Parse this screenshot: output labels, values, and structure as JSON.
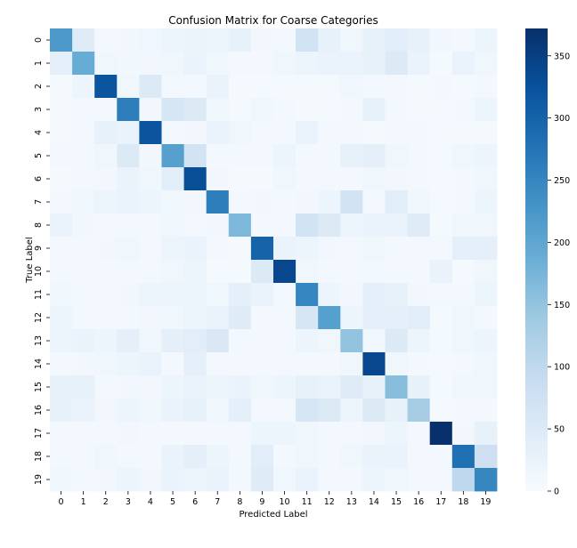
{
  "chart_data": {
    "type": "heatmap",
    "title": "Confusion Matrix for Coarse Categories",
    "xlabel": "Predicted Label",
    "ylabel": "True Label",
    "x_categories": [
      "0",
      "1",
      "2",
      "3",
      "4",
      "5",
      "6",
      "7",
      "8",
      "9",
      "10",
      "11",
      "12",
      "13",
      "14",
      "15",
      "16",
      "17",
      "18",
      "19"
    ],
    "y_categories": [
      "0",
      "1",
      "2",
      "3",
      "4",
      "5",
      "6",
      "7",
      "8",
      "9",
      "10",
      "11",
      "12",
      "13",
      "14",
      "15",
      "16",
      "17",
      "18",
      "19"
    ],
    "colormap": "Blues",
    "colorbar": {
      "min": 0,
      "max": 372,
      "ticks": [
        0,
        50,
        100,
        150,
        200,
        250,
        300,
        350
      ]
    },
    "values": [
      [
        220,
        45,
        10,
        12,
        14,
        20,
        22,
        18,
        30,
        12,
        10,
        70,
        30,
        15,
        30,
        40,
        30,
        12,
        10,
        20
      ],
      [
        35,
        190,
        15,
        12,
        12,
        15,
        25,
        15,
        10,
        10,
        15,
        20,
        25,
        25,
        30,
        50,
        25,
        5,
        25,
        15
      ],
      [
        5,
        20,
        320,
        15,
        50,
        8,
        10,
        25,
        5,
        5,
        5,
        5,
        5,
        15,
        8,
        10,
        5,
        8,
        5,
        10
      ],
      [
        5,
        8,
        10,
        260,
        12,
        60,
        50,
        15,
        5,
        15,
        10,
        5,
        5,
        10,
        30,
        10,
        5,
        5,
        10,
        20
      ],
      [
        5,
        8,
        30,
        25,
        320,
        10,
        12,
        25,
        15,
        10,
        10,
        25,
        10,
        10,
        5,
        10,
        10,
        5,
        5,
        5
      ],
      [
        8,
        10,
        15,
        50,
        12,
        210,
        70,
        8,
        8,
        10,
        18,
        10,
        10,
        30,
        35,
        15,
        10,
        5,
        15,
        20
      ],
      [
        5,
        8,
        12,
        25,
        15,
        40,
        330,
        12,
        5,
        5,
        15,
        8,
        8,
        10,
        15,
        12,
        8,
        5,
        10,
        15
      ],
      [
        8,
        15,
        20,
        25,
        20,
        15,
        12,
        260,
        10,
        12,
        10,
        12,
        20,
        70,
        10,
        40,
        15,
        5,
        10,
        20
      ],
      [
        25,
        12,
        10,
        8,
        10,
        15,
        10,
        12,
        170,
        10,
        10,
        70,
        50,
        20,
        25,
        25,
        45,
        5,
        15,
        15
      ],
      [
        8,
        10,
        12,
        15,
        10,
        18,
        25,
        10,
        5,
        300,
        25,
        20,
        12,
        10,
        15,
        10,
        10,
        10,
        35,
        35
      ],
      [
        8,
        10,
        8,
        10,
        10,
        15,
        20,
        5,
        5,
        50,
        340,
        15,
        10,
        8,
        10,
        10,
        10,
        25,
        5,
        15
      ],
      [
        15,
        10,
        10,
        12,
        18,
        20,
        20,
        15,
        35,
        25,
        10,
        250,
        20,
        12,
        35,
        30,
        12,
        10,
        10,
        20
      ],
      [
        20,
        10,
        10,
        10,
        12,
        15,
        20,
        25,
        45,
        10,
        10,
        60,
        210,
        20,
        35,
        35,
        40,
        5,
        15,
        10
      ],
      [
        20,
        25,
        20,
        35,
        15,
        35,
        40,
        55,
        10,
        10,
        10,
        20,
        15,
        150,
        15,
        50,
        20,
        5,
        15,
        20
      ],
      [
        8,
        12,
        15,
        20,
        25,
        10,
        35,
        8,
        8,
        8,
        10,
        10,
        10,
        15,
        340,
        15,
        10,
        5,
        10,
        15
      ],
      [
        30,
        30,
        10,
        12,
        12,
        20,
        25,
        20,
        25,
        15,
        20,
        30,
        25,
        45,
        30,
        160,
        30,
        5,
        15,
        15
      ],
      [
        30,
        25,
        12,
        18,
        15,
        25,
        30,
        15,
        35,
        10,
        10,
        60,
        50,
        20,
        50,
        30,
        130,
        5,
        10,
        10
      ],
      [
        8,
        10,
        10,
        12,
        10,
        8,
        8,
        10,
        10,
        20,
        20,
        15,
        10,
        10,
        12,
        20,
        10,
        372,
        12,
        30
      ],
      [
        10,
        10,
        15,
        10,
        8,
        25,
        35,
        20,
        10,
        40,
        10,
        15,
        10,
        15,
        25,
        25,
        10,
        10,
        280,
        80
      ],
      [
        15,
        10,
        12,
        20,
        12,
        25,
        20,
        25,
        10,
        45,
        15,
        25,
        10,
        10,
        20,
        15,
        10,
        10,
        100,
        250
      ]
    ]
  }
}
